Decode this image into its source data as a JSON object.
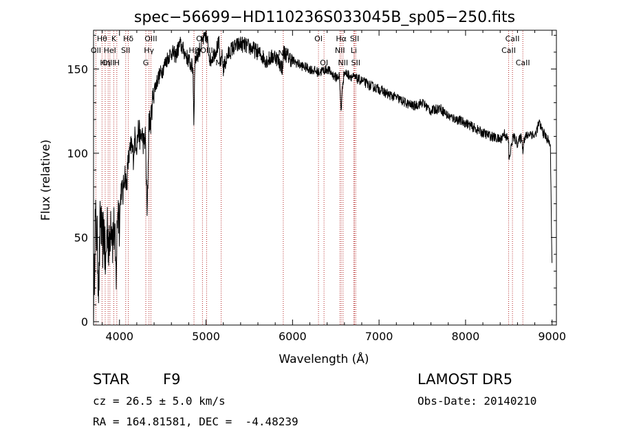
{
  "chart_data": {
    "type": "line",
    "title": "spec−56699−HD110236S033045B_sp05−250.fits",
    "xlabel": "Wavelength (Å)",
    "ylabel": "Flux (relative)",
    "xlim": [
      3700,
      9050
    ],
    "ylim": [
      -2,
      173
    ],
    "x_ticks": [
      4000,
      5000,
      6000,
      7000,
      8000,
      9000
    ],
    "y_ticks": [
      0,
      50,
      100,
      150
    ],
    "grid": false,
    "line_color": "#000000",
    "marker_color": "#b22222",
    "spectrum": {
      "name": "",
      "x": [
        3700,
        3720,
        3740,
        3760,
        3780,
        3800,
        3820,
        3840,
        3860,
        3880,
        3900,
        3920,
        3940,
        3960,
        3980,
        4000,
        4020,
        4040,
        4060,
        4080,
        4100,
        4120,
        4140,
        4160,
        4180,
        4200,
        4220,
        4240,
        4260,
        4280,
        4300,
        4320,
        4340,
        4360,
        4380,
        4400,
        4450,
        4500,
        4550,
        4600,
        4650,
        4700,
        4750,
        4800,
        4850,
        4860,
        4870,
        4900,
        4950,
        5000,
        5050,
        5100,
        5150,
        5170,
        5180,
        5200,
        5250,
        5300,
        5400,
        5500,
        5600,
        5700,
        5800,
        5890,
        5895,
        5900,
        6000,
        6100,
        6200,
        6300,
        6400,
        6500,
        6540,
        6562,
        6580,
        6600,
        6700,
        6800,
        6900,
        7000,
        7100,
        7200,
        7300,
        7400,
        7500,
        7600,
        7700,
        7800,
        7900,
        8000,
        8100,
        8200,
        8300,
        8400,
        8450,
        8498,
        8500,
        8542,
        8550,
        8600,
        8650,
        8662,
        8670,
        8700,
        8750,
        8800,
        8850,
        8900,
        8950,
        8980,
        9000
      ],
      "y": [
        5,
        60,
        50,
        20,
        65,
        45,
        55,
        30,
        60,
        40,
        65,
        50,
        55,
        25,
        70,
        60,
        80,
        75,
        90,
        80,
        95,
        100,
        105,
        98,
        110,
        105,
        115,
        108,
        112,
        105,
        110,
        60,
        120,
        118,
        130,
        138,
        145,
        150,
        156,
        160,
        158,
        165,
        160,
        155,
        150,
        115,
        155,
        158,
        165,
        170,
        155,
        160,
        165,
        148,
        160,
        150,
        158,
        162,
        165,
        163,
        160,
        155,
        158,
        150,
        165,
        160,
        155,
        152,
        150,
        148,
        150,
        145,
        146,
        125,
        142,
        148,
        145,
        143,
        140,
        138,
        135,
        133,
        130,
        128,
        130,
        125,
        127,
        122,
        120,
        118,
        115,
        112,
        110,
        108,
        112,
        107,
        95,
        108,
        110,
        106,
        110,
        100,
        108,
        110,
        112,
        110,
        118,
        112,
        108,
        105,
        30
      ],
      "extra_spikes": []
    },
    "line_markers": [
      {
        "label": "Hθ",
        "wavelength": 3798,
        "row": 0
      },
      {
        "label": "OII",
        "wavelength": 3727,
        "row": 1
      },
      {
        "label": "OIII",
        "wavelength": 3869,
        "row": 2
      },
      {
        "label": "Hη",
        "wavelength": 3835,
        "row": 2
      },
      {
        "label": "K",
        "wavelength": 3934,
        "row": 0
      },
      {
        "label": "H",
        "wavelength": 3969,
        "row": 2
      },
      {
        "label": "HeI",
        "wavelength": 3889,
        "row": 1
      },
      {
        "label": "Hδ",
        "wavelength": 4102,
        "row": 0
      },
      {
        "label": "SII",
        "wavelength": 4072,
        "row": 1
      },
      {
        "label": "OIII",
        "wavelength": 4363,
        "row": 0
      },
      {
        "label": "Hγ",
        "wavelength": 4341,
        "row": 1
      },
      {
        "label": "G",
        "wavelength": 4304,
        "row": 2
      },
      {
        "label": "OIII",
        "wavelength": 4959,
        "row": 0
      },
      {
        "label": "Hβ",
        "wavelength": 4861,
        "row": 1
      },
      {
        "label": "OIII",
        "wavelength": 5007,
        "row": 1
      },
      {
        "label": "Mg",
        "wavelength": 5175,
        "row": 2
      },
      {
        "label": "Na",
        "wavelength": 5893,
        "row": 3
      },
      {
        "label": "OI",
        "wavelength": 6300,
        "row": 0
      },
      {
        "label": "OI",
        "wavelength": 6364,
        "row": 2
      },
      {
        "label": "Hα",
        "wavelength": 6563,
        "row": 0
      },
      {
        "label": "NII",
        "wavelength": 6548,
        "row": 1
      },
      {
        "label": "NII",
        "wavelength": 6584,
        "row": 2
      },
      {
        "label": "SII",
        "wavelength": 6717,
        "row": 0
      },
      {
        "label": "Li",
        "wavelength": 6708,
        "row": 1
      },
      {
        "label": "SII",
        "wavelength": 6731,
        "row": 2
      },
      {
        "label": "CaII",
        "wavelength": 8542,
        "row": 0
      },
      {
        "label": "CaII",
        "wavelength": 8498,
        "row": 1
      },
      {
        "label": "CaII",
        "wavelength": 8662,
        "row": 2
      }
    ]
  },
  "info": {
    "object_class": "STAR",
    "subclass": "F9",
    "survey": "LAMOST DR5",
    "redshift": "cz = 26.5 ± 5.0 km/s",
    "obs_date": "Obs-Date: 20140210",
    "coords": "RA = 164.81581, DEC =  -4.48239"
  }
}
